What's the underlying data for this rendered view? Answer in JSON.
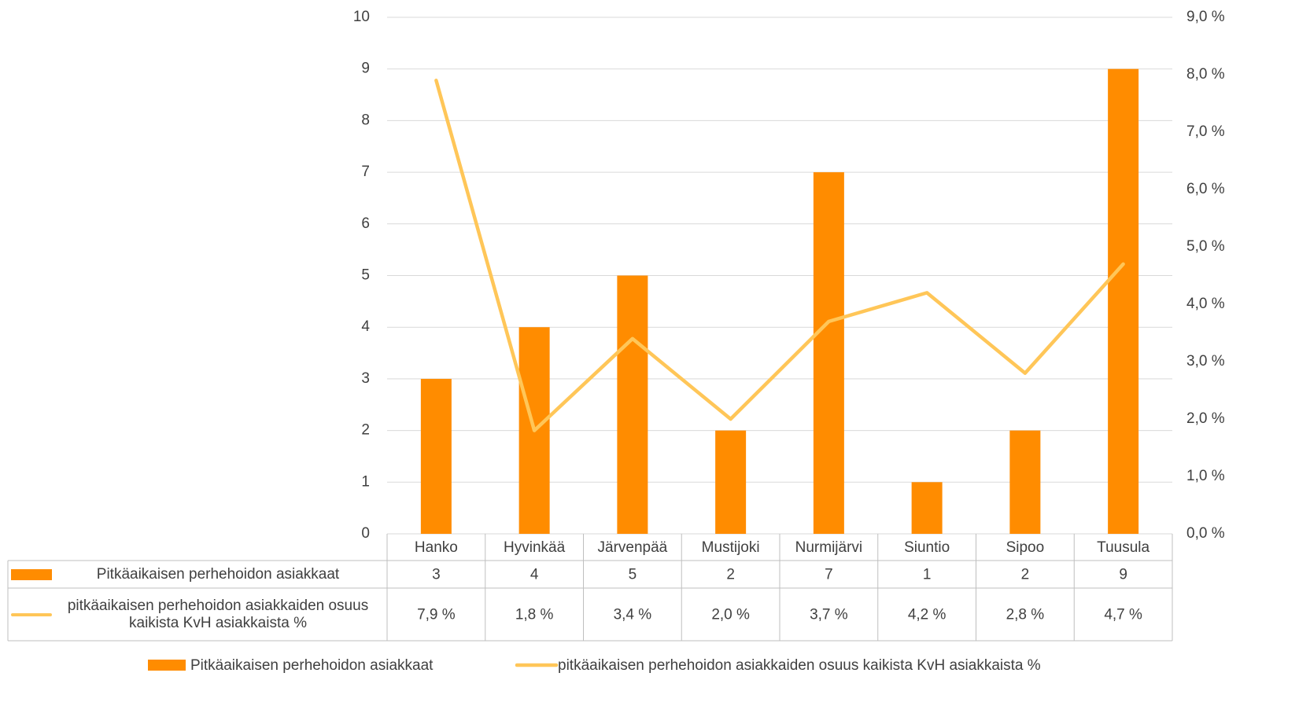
{
  "chart_data": {
    "type": "bar",
    "categories": [
      "Hanko",
      "Hyvinkää",
      "Järvenpää",
      "Mustijoki",
      "Nurmijärvi",
      "Siuntio",
      "Sipoo",
      "Tuusula"
    ],
    "series": [
      {
        "name": "Pitkäaikaisen perhehoidon asiakkaat",
        "type": "bar",
        "color": "#ff8c00",
        "values": [
          3,
          4,
          5,
          2,
          7,
          1,
          2,
          9
        ]
      },
      {
        "name": "pitkäaikaisen perhehoidon asiakkaiden osuus kaikista KvH asiakkaista %",
        "type": "line",
        "axis": "y2",
        "color": "#ffc658",
        "values": [
          7.9,
          1.8,
          3.4,
          2.0,
          3.7,
          4.2,
          2.8,
          4.7
        ],
        "value_labels": [
          "7,9 %",
          "1,8 %",
          "3,4 %",
          "2,0 %",
          "3,7 %",
          "4,2 %",
          "2,8 %",
          "4,7 %"
        ]
      }
    ],
    "ylim": [
      0,
      10
    ],
    "yticks": [
      0,
      1,
      2,
      3,
      4,
      5,
      6,
      7,
      8,
      9,
      10
    ],
    "y2lim": [
      0,
      9
    ],
    "y2ticks": [
      {
        "value": 0,
        "label": "0,0 %"
      },
      {
        "value": 1,
        "label": "1,0 %"
      },
      {
        "value": 2,
        "label": "2,0 %"
      },
      {
        "value": 3,
        "label": "3,0 %"
      },
      {
        "value": 4,
        "label": "4,0 %"
      },
      {
        "value": 5,
        "label": "5,0 %"
      },
      {
        "value": 6,
        "label": "6,0 %"
      },
      {
        "value": 7,
        "label": "7,0 %"
      },
      {
        "value": 8,
        "label": "8,0 %"
      },
      {
        "value": 9,
        "label": "9,0 %"
      }
    ],
    "grid": true
  }
}
